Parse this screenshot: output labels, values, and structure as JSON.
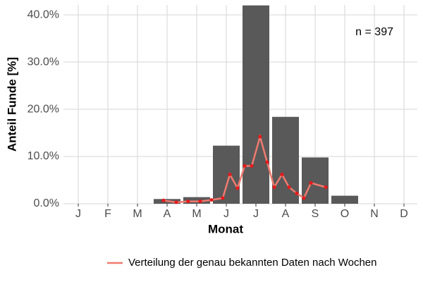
{
  "chart_data": {
    "type": "bar",
    "categories": [
      "J",
      "F",
      "M",
      "A",
      "M",
      "J",
      "J",
      "A",
      "S",
      "O",
      "N",
      "D"
    ],
    "values": [
      null,
      null,
      null,
      1.0,
      1.4,
      12.3,
      42,
      18.4,
      9.8,
      1.7,
      null,
      null
    ],
    "color": "#595959",
    "xlabel": "Monat",
    "ylabel": "Anteil Funde [%]",
    "ylim": [
      0,
      42.1
    ],
    "yticks": [
      {
        "value": 0,
        "label": "0.0%"
      },
      {
        "value": 10,
        "label": "10.0%"
      },
      {
        "value": 20,
        "label": "20.0%"
      },
      {
        "value": 30,
        "label": "30.0%"
      },
      {
        "value": 40,
        "label": "40.0%"
      }
    ],
    "grid": true,
    "annotation": "n = 397",
    "legend": "bottom-right",
    "series": [
      {
        "name": "Verteilung der genau bekannten Daten nach Wochen",
        "type": "line",
        "color": "#f07a6e",
        "point_color": "#e8191b",
        "x": [
          3.88,
          4.31,
          4.71,
          5.12,
          5.5,
          5.88,
          6.12,
          6.38,
          6.62,
          6.86,
          7.14,
          7.38,
          7.62,
          7.88,
          8.12,
          8.38,
          8.62,
          8.86,
          9.36
        ],
        "values": [
          0.7,
          0.3,
          0.5,
          0.5,
          0.8,
          1.2,
          6.2,
          3.3,
          8.0,
          8.0,
          14.2,
          8.8,
          3.5,
          6.2,
          3.5,
          2.2,
          1.2,
          4.4,
          3.5
        ]
      }
    ]
  }
}
